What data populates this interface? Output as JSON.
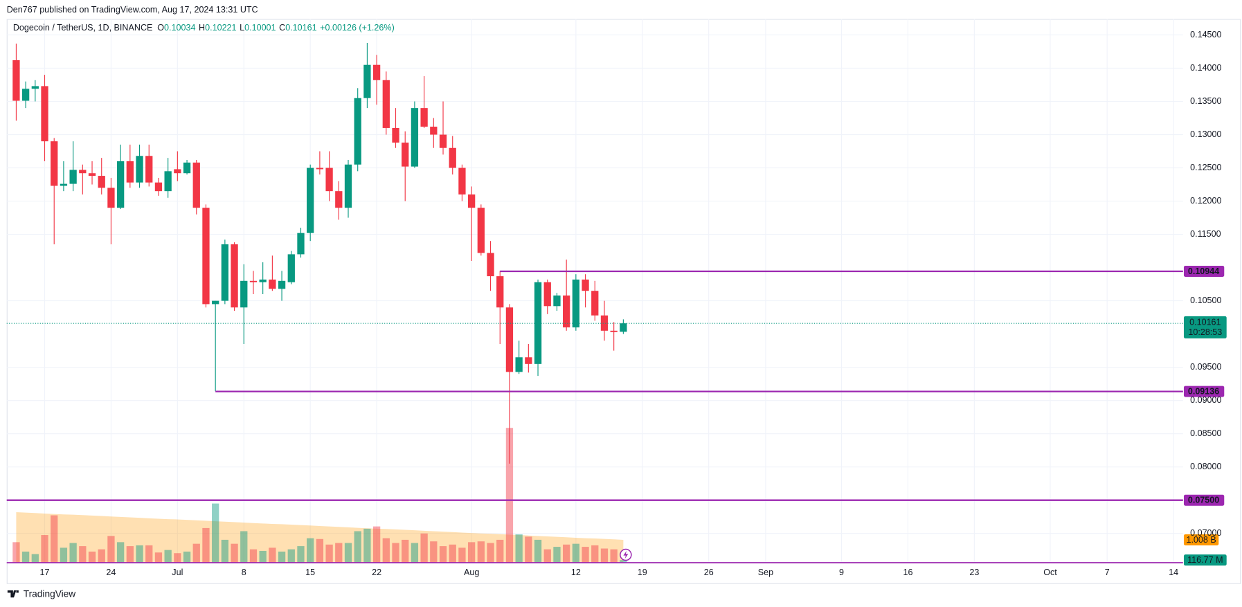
{
  "chart_data": {
    "type": "candlestick",
    "subtitle": "Den767 published on TradingView.com, Aug 17, 2024 13:31 UTC",
    "title": "Dogecoin / TetherUS, 1D, BINANCE",
    "ohlc_legend": [
      {
        "label": "O",
        "value": 0.10034
      },
      {
        "label": "H",
        "value": 0.10221
      },
      {
        "label": "L",
        "value": 0.10001
      },
      {
        "label": "C",
        "value": 0.10161
      }
    ],
    "change": "+0.00126 (+1.26%)",
    "up_color": "#089981",
    "down_color": "#f23645",
    "x": [
      "2024-06-14",
      "2024-06-15",
      "2024-06-16",
      "2024-06-17",
      "2024-06-18",
      "2024-06-19",
      "2024-06-20",
      "2024-06-21",
      "2024-06-22",
      "2024-06-23",
      "2024-06-24",
      "2024-06-25",
      "2024-06-26",
      "2024-06-27",
      "2024-06-28",
      "2024-06-29",
      "2024-06-30",
      "2024-07-01",
      "2024-07-02",
      "2024-07-03",
      "2024-07-04",
      "2024-07-05",
      "2024-07-06",
      "2024-07-07",
      "2024-07-08",
      "2024-07-09",
      "2024-07-10",
      "2024-07-11",
      "2024-07-12",
      "2024-07-13",
      "2024-07-14",
      "2024-07-15",
      "2024-07-16",
      "2024-07-17",
      "2024-07-18",
      "2024-07-19",
      "2024-07-20",
      "2024-07-21",
      "2024-07-22",
      "2024-07-23",
      "2024-07-24",
      "2024-07-25",
      "2024-07-26",
      "2024-07-27",
      "2024-07-28",
      "2024-07-29",
      "2024-07-30",
      "2024-07-31",
      "2024-08-01",
      "2024-08-02",
      "2024-08-03",
      "2024-08-04",
      "2024-08-05",
      "2024-08-06",
      "2024-08-07",
      "2024-08-08",
      "2024-08-09",
      "2024-08-10",
      "2024-08-11",
      "2024-08-12",
      "2024-08-13",
      "2024-08-14",
      "2024-08-15",
      "2024-08-16",
      "2024-08-17"
    ],
    "open": [
      0.1412,
      0.1351,
      0.1369,
      0.1373,
      0.129,
      0.1223,
      0.1226,
      0.1247,
      0.1242,
      0.1238,
      0.122,
      0.119,
      0.126,
      0.1228,
      0.1268,
      0.1228,
      0.1215,
      0.1248,
      0.1242,
      0.1258,
      0.119,
      0.1045,
      0.105,
      0.1135,
      0.104,
      0.108,
      0.1078,
      0.1082,
      0.1068,
      0.1078,
      0.112,
      0.1152,
      0.125,
      0.125,
      0.1215,
      0.119,
      0.1255,
      0.1355,
      0.1405,
      0.1382,
      0.131,
      0.1288,
      0.1252,
      0.134,
      0.1312,
      0.13,
      0.128,
      0.125,
      0.121,
      0.119,
      0.1122,
      0.1087,
      0.104,
      0.0943,
      0.0965,
      0.0955,
      0.1078,
      0.1042,
      0.1058,
      0.101,
      0.1082,
      0.1065,
      0.1028,
      0.1005,
      0.10034
    ],
    "high": [
      0.1437,
      0.138,
      0.1382,
      0.139,
      0.1295,
      0.126,
      0.129,
      0.1255,
      0.126,
      0.1265,
      0.1235,
      0.1285,
      0.1285,
      0.1285,
      0.1285,
      0.1235,
      0.1265,
      0.1275,
      0.1262,
      0.1262,
      0.1195,
      0.105,
      0.1142,
      0.1138,
      0.1105,
      0.1095,
      0.1108,
      0.1118,
      0.1095,
      0.1125,
      0.116,
      0.1255,
      0.1275,
      0.1275,
      0.123,
      0.1262,
      0.137,
      0.1438,
      0.142,
      0.1395,
      0.134,
      0.1305,
      0.135,
      0.1388,
      0.1325,
      0.135,
      0.1298,
      0.1255,
      0.1222,
      0.1195,
      0.114,
      0.1095,
      0.1045,
      0.099,
      0.0985,
      0.1082,
      0.1082,
      0.1062,
      0.1112,
      0.109,
      0.109,
      0.108,
      0.105,
      0.1018,
      0.10221
    ],
    "low": [
      0.1321,
      0.134,
      0.135,
      0.126,
      0.1135,
      0.1215,
      0.1215,
      0.121,
      0.1225,
      0.121,
      0.1135,
      0.1188,
      0.122,
      0.122,
      0.1222,
      0.1208,
      0.1205,
      0.123,
      0.124,
      0.118,
      0.104,
      0.0914,
      0.1045,
      0.1035,
      0.0985,
      0.106,
      0.106,
      0.1065,
      0.105,
      0.1075,
      0.1115,
      0.114,
      0.124,
      0.12,
      0.1172,
      0.1175,
      0.1245,
      0.134,
      0.1345,
      0.13,
      0.128,
      0.12,
      0.125,
      0.131,
      0.128,
      0.127,
      0.124,
      0.12,
      0.111,
      0.1118,
      0.1065,
      0.0985,
      0.0805,
      0.094,
      0.0942,
      0.0937,
      0.103,
      0.1035,
      0.1005,
      0.1005,
      0.104,
      0.102,
      0.099,
      0.0975,
      0.10001
    ],
    "close": [
      0.1351,
      0.1369,
      0.1373,
      0.129,
      0.1223,
      0.1226,
      0.1247,
      0.1242,
      0.1238,
      0.122,
      0.119,
      0.126,
      0.1228,
      0.1268,
      0.1228,
      0.1215,
      0.1245,
      0.1242,
      0.1258,
      0.119,
      0.1045,
      0.105,
      0.1135,
      0.104,
      0.108,
      0.1078,
      0.1082,
      0.1068,
      0.108,
      0.112,
      0.1152,
      0.125,
      0.1248,
      0.1215,
      0.119,
      0.1255,
      0.1355,
      0.1405,
      0.1382,
      0.131,
      0.1288,
      0.1252,
      0.134,
      0.1312,
      0.13,
      0.128,
      0.125,
      0.121,
      0.119,
      0.1122,
      0.1087,
      0.104,
      0.0943,
      0.0965,
      0.0955,
      0.1078,
      0.1042,
      0.1058,
      0.101,
      0.1082,
      0.1065,
      0.1028,
      0.1005,
      0.1003,
      0.10161
    ],
    "volume": [
      905000000.0,
      490000000.0,
      380000000.0,
      1220000000.0,
      2090000000.0,
      660000000.0,
      870000000.0,
      730000000.0,
      490000000.0,
      590000000.0,
      1180000000.0,
      905000000.0,
      730000000.0,
      765000000.0,
      765000000.0,
      450000000.0,
      560000000.0,
      420000000.0,
      490000000.0,
      835000000.0,
      1530000000.0,
      2610000000.0,
      1010000000.0,
      835000000.0,
      1390000000.0,
      590000000.0,
      520000000.0,
      660000000.0,
      490000000.0,
      590000000.0,
      730000000.0,
      1080000000.0,
      1045000000.0,
      800000000.0,
      870000000.0,
      870000000.0,
      1390000000.0,
      1500000000.0,
      1600000000.0,
      1080000000.0,
      870000000.0,
      1010000000.0,
      870000000.0,
      1290000000.0,
      940000000.0,
      730000000.0,
      800000000.0,
      660000000.0,
      905000000.0,
      940000000.0,
      870000000.0,
      1010000000.0,
      5950000000.0,
      1250000000.0,
      1150000000.0,
      1010000000.0,
      590000000.0,
      700000000.0,
      800000000.0,
      835000000.0,
      700000000.0,
      765000000.0,
      625000000.0,
      590000000.0,
      116770000.0
    ],
    "volume_ma": [
      2230000000.0,
      2210000000.0,
      2190000000.0,
      2170000000.0,
      2150000000.0,
      2130000000.0,
      2120000000.0,
      2100000000.0,
      2080000000.0,
      2060000000.0,
      2040000000.0,
      2020000000.0,
      2000000000.0,
      1980000000.0,
      1960000000.0,
      1940000000.0,
      1920000000.0,
      1910000000.0,
      1890000000.0,
      1870000000.0,
      1850000000.0,
      1830000000.0,
      1810000000.0,
      1790000000.0,
      1770000000.0,
      1750000000.0,
      1730000000.0,
      1710000000.0,
      1700000000.0,
      1680000000.0,
      1660000000.0,
      1640000000.0,
      1620000000.0,
      1600000000.0,
      1580000000.0,
      1560000000.0,
      1540000000.0,
      1520000000.0,
      1500000000.0,
      1490000000.0,
      1470000000.0,
      1450000000.0,
      1430000000.0,
      1410000000.0,
      1390000000.0,
      1370000000.0,
      1350000000.0,
      1330000000.0,
      1310000000.0,
      1290000000.0,
      1280000000.0,
      1260000000.0,
      1240000000.0,
      1220000000.0,
      1200000000.0,
      1180000000.0,
      1160000000.0,
      1140000000.0,
      1120000000.0,
      1100000000.0,
      1080000000.0,
      1070000000.0,
      1050000000.0,
      1030000000.0,
      1008000000.0
    ],
    "volume_ma_color": "#ff9800",
    "volume_ma_label": "1.008 B",
    "last_volume_label": "116.77 M",
    "volume_ylim": [
      0,
      24000000000.0
    ],
    "xlim": [
      "2024-06-13",
      "2024-10-15"
    ],
    "xticks": [
      {
        "value": "2024-06-17",
        "label": "17"
      },
      {
        "value": "2024-06-24",
        "label": "24"
      },
      {
        "value": "2024-07-01",
        "label": "Jul"
      },
      {
        "value": "2024-07-08",
        "label": "8"
      },
      {
        "value": "2024-07-15",
        "label": "15"
      },
      {
        "value": "2024-07-22",
        "label": "22"
      },
      {
        "value": "2024-08-01",
        "label": "Aug"
      },
      {
        "value": "2024-08-12",
        "label": "12"
      },
      {
        "value": "2024-08-19",
        "label": "19"
      },
      {
        "value": "2024-08-26",
        "label": "26"
      },
      {
        "value": "2024-09-01",
        "label": "Sep"
      },
      {
        "value": "2024-09-09",
        "label": "9"
      },
      {
        "value": "2024-09-16",
        "label": "16"
      },
      {
        "value": "2024-09-23",
        "label": "23"
      },
      {
        "value": "2024-10-01",
        "label": "Oct"
      },
      {
        "value": "2024-10-07",
        "label": "7"
      },
      {
        "value": "2024-10-14",
        "label": "14"
      }
    ],
    "ylim": [
      0.0656,
      0.1474
    ],
    "yticks": [
      {
        "value": 0.145,
        "label": "0.14500"
      },
      {
        "value": 0.14,
        "label": "0.14000"
      },
      {
        "value": 0.135,
        "label": "0.13500"
      },
      {
        "value": 0.13,
        "label": "0.13000"
      },
      {
        "value": 0.125,
        "label": "0.12500"
      },
      {
        "value": 0.12,
        "label": "0.12000"
      },
      {
        "value": 0.115,
        "label": "0.11500"
      },
      {
        "value": 0.105,
        "label": "0.10500"
      },
      {
        "value": 0.095,
        "label": "0.09500"
      },
      {
        "value": 0.09,
        "label": "0.09000"
      },
      {
        "value": 0.085,
        "label": "0.08500"
      },
      {
        "value": 0.08,
        "label": "0.08000"
      },
      {
        "value": 0.07,
        "label": "0.07000"
      }
    ],
    "grid": true,
    "levels": [
      {
        "value": 0.10944,
        "label": "0.10944",
        "start": "2024-08-04"
      },
      {
        "value": 0.09136,
        "label": "0.09136",
        "start": "2024-07-05"
      },
      {
        "value": 0.075,
        "label": "0.07500"
      }
    ],
    "level_color": "#9c27b0",
    "last_price": {
      "value": 0.10161,
      "label": "0.10161"
    },
    "countdown": "10:28:53",
    "footer": "TradingView"
  }
}
